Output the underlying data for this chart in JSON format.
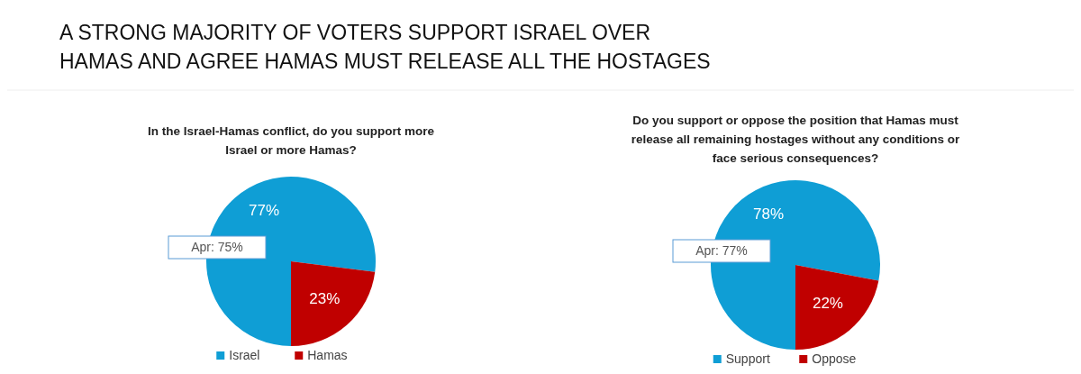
{
  "chart_data": [
    {
      "type": "pie",
      "title": "A STRONG MAJORITY OF VOTERS SUPPORT ISRAEL OVER HAMAS AND AGREE HAMAS MUST RELEASE ALL THE HOSTAGES",
      "subtitle": "In the Israel-Hamas conflict, do you support more Israel or more Hamas?",
      "categories": [
        "Israel",
        "Hamas"
      ],
      "values": [
        77,
        23
      ],
      "colors": [
        "#0f9ed5",
        "#c00000"
      ],
      "value_labels": [
        "77%",
        "23%"
      ],
      "legend": "bottom",
      "annotations": [
        "Apr: 75%"
      ]
    },
    {
      "type": "pie",
      "title": "Do you support or oppose the position that Hamas must release all remaining hostages without any conditions or face serious consequences?",
      "categories": [
        "Support",
        "Oppose"
      ],
      "values": [
        78,
        22
      ],
      "colors": [
        "#0f9ed5",
        "#c00000"
      ],
      "value_labels": [
        "78%",
        "22%"
      ],
      "legend": "bottom",
      "annotations": [
        "Apr: 77%"
      ]
    }
  ]
}
